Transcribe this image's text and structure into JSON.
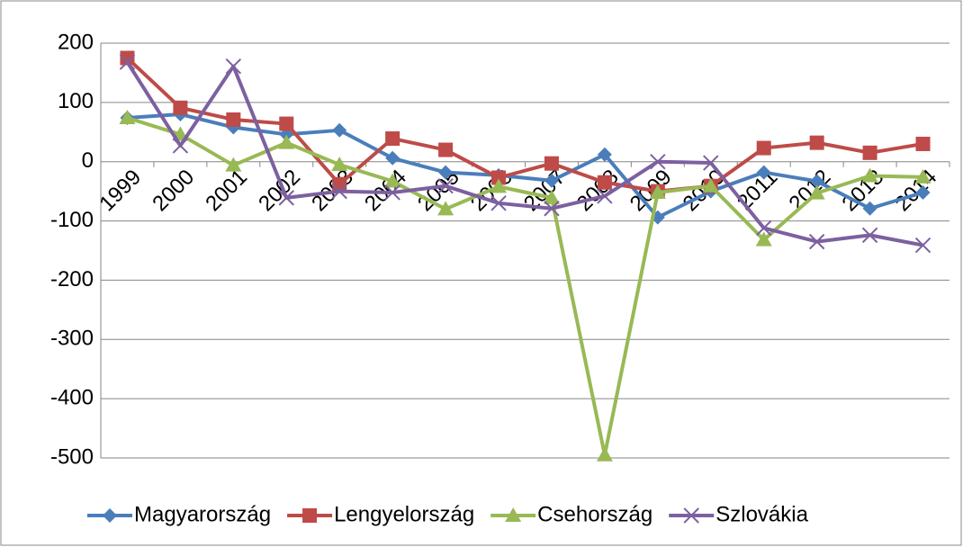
{
  "chart_data": {
    "type": "line",
    "categories": [
      "1999",
      "2000",
      "2001",
      "2002",
      "2003",
      "2004",
      "2005",
      "2006",
      "2007",
      "2008",
      "2009",
      "2010",
      "2011",
      "2012",
      "2013",
      "2014"
    ],
    "series": [
      {
        "name": "Magyarország",
        "color": "#4a7ebb",
        "marker": "diamond",
        "values": [
          74,
          80,
          58,
          46,
          53,
          6,
          -18,
          -23,
          -32,
          12,
          -94,
          -50,
          -18,
          -33,
          -79,
          -52
        ]
      },
      {
        "name": "Lengyelország",
        "color": "#be4b48",
        "marker": "square",
        "values": [
          175,
          91,
          71,
          64,
          -38,
          39,
          20,
          -27,
          -3,
          -35,
          -50,
          -41,
          23,
          32,
          15,
          30
        ]
      },
      {
        "name": "Csehország",
        "color": "#98b954",
        "marker": "triangle",
        "values": [
          74,
          46,
          -6,
          32,
          -5,
          -33,
          -80,
          -42,
          -61,
          -495,
          -52,
          -41,
          -132,
          -53,
          -24,
          -26
        ]
      },
      {
        "name": "Szlovákia",
        "color": "#7d60a0",
        "marker": "x",
        "values": [
          168,
          27,
          161,
          -61,
          -50,
          -52,
          -41,
          -70,
          -79,
          -58,
          0,
          -2,
          -112,
          -135,
          -124,
          -141
        ]
      }
    ],
    "ylim": [
      -500,
      200
    ],
    "yticks": [
      -500,
      -400,
      -300,
      -200,
      -100,
      0,
      100,
      200
    ],
    "grid": true,
    "legend": "bottom"
  }
}
